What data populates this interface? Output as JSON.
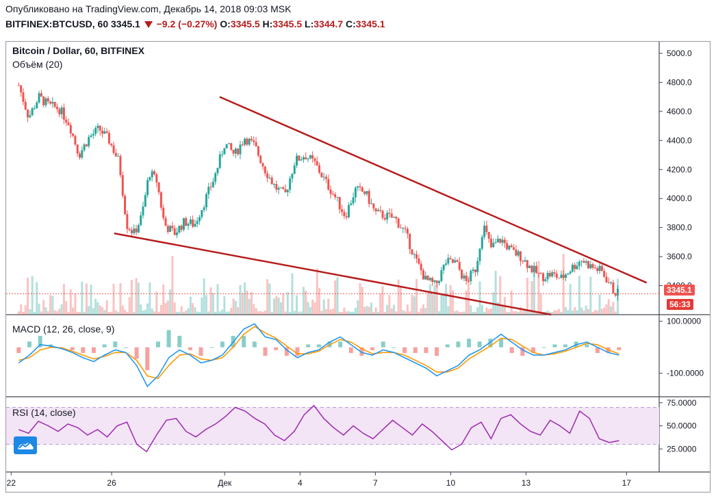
{
  "header": {
    "published": "Опубликовано на TradingView.com, Декабрь 14, 2018 09:03 MSK",
    "symbol": "BITFINEX:BTCUSD, 60",
    "last": "3345.1",
    "change": "−9.2 (−0.27%)",
    "o_label": "O:",
    "o_value": "3345.5",
    "h_label": "H:",
    "h_value": "3345.5",
    "l_label": "L:",
    "l_value": "3344.7",
    "c_label": "C:",
    "c_value": "3345.1"
  },
  "price_pane": {
    "title": "Bitcoin / Dollar, 60, BITFINEX",
    "volume_label": "Объём (20)",
    "last_price_tag": "3345.1",
    "countdown_tag": "56:33"
  },
  "macd_pane": {
    "title": "MACD (12, 26, close, 9)"
  },
  "rsi_pane": {
    "title": "RSI (14, close)"
  },
  "colors": {
    "up": "#26a69a",
    "down": "#ef5350",
    "trendline": "#b71c1c",
    "macd": "#2196f3",
    "signal": "#ff9800",
    "rsi": "#9c27b0",
    "rsi_band": "#f3e5f5"
  },
  "chart_data": [
    {
      "type": "candlestick",
      "title": "Bitcoin / Dollar, 60, BITFINEX",
      "x_ticks": [
        "22",
        "26",
        "Дек",
        "4",
        "7",
        "10",
        "13",
        "17"
      ],
      "y_ticks": [
        "5000.0",
        "4800.0",
        "4600.0",
        "4400.0",
        "4200.0",
        "4000.0",
        "3800.0",
        "3600.0",
        "3400.0"
      ],
      "ylim": [
        3200,
        5080
      ],
      "last_price": 3345.1,
      "close_path": [
        {
          "t": 0,
          "p": 4780
        },
        {
          "t": 0.4,
          "p": 4560
        },
        {
          "t": 0.8,
          "p": 4700
        },
        {
          "t": 1.2,
          "p": 4640
        },
        {
          "t": 1.6,
          "p": 4620
        },
        {
          "t": 2.0,
          "p": 4520
        },
        {
          "t": 2.4,
          "p": 4300
        },
        {
          "t": 2.8,
          "p": 4420
        },
        {
          "t": 3.2,
          "p": 4480
        },
        {
          "t": 3.6,
          "p": 4400
        },
        {
          "t": 4.0,
          "p": 4250
        },
        {
          "t": 4.3,
          "p": 3820
        },
        {
          "t": 4.6,
          "p": 3760
        },
        {
          "t": 4.9,
          "p": 3880
        },
        {
          "t": 5.2,
          "p": 4180
        },
        {
          "t": 5.5,
          "p": 4120
        },
        {
          "t": 5.8,
          "p": 3820
        },
        {
          "t": 6.2,
          "p": 3760
        },
        {
          "t": 6.6,
          "p": 3840
        },
        {
          "t": 7.0,
          "p": 3820
        },
        {
          "t": 7.4,
          "p": 3980
        },
        {
          "t": 7.8,
          "p": 4150
        },
        {
          "t": 8.2,
          "p": 4380
        },
        {
          "t": 8.6,
          "p": 4300
        },
        {
          "t": 9.0,
          "p": 4420
        },
        {
          "t": 9.4,
          "p": 4360
        },
        {
          "t": 9.8,
          "p": 4200
        },
        {
          "t": 10.2,
          "p": 4080
        },
        {
          "t": 10.6,
          "p": 4020
        },
        {
          "t": 11.0,
          "p": 4260
        },
        {
          "t": 11.4,
          "p": 4300
        },
        {
          "t": 11.8,
          "p": 4240
        },
        {
          "t": 12.2,
          "p": 4120
        },
        {
          "t": 12.6,
          "p": 4010
        },
        {
          "t": 13.0,
          "p": 3880
        },
        {
          "t": 13.4,
          "p": 4060
        },
        {
          "t": 13.8,
          "p": 4040
        },
        {
          "t": 14.2,
          "p": 3900
        },
        {
          "t": 14.6,
          "p": 3880
        },
        {
          "t": 15.0,
          "p": 3860
        },
        {
          "t": 15.4,
          "p": 3760
        },
        {
          "t": 15.8,
          "p": 3580
        },
        {
          "t": 16.2,
          "p": 3440
        },
        {
          "t": 16.6,
          "p": 3400
        },
        {
          "t": 17.0,
          "p": 3560
        },
        {
          "t": 17.4,
          "p": 3560
        },
        {
          "t": 17.8,
          "p": 3420
        },
        {
          "t": 18.2,
          "p": 3520
        },
        {
          "t": 18.5,
          "p": 3820
        },
        {
          "t": 18.8,
          "p": 3660
        },
        {
          "t": 19.2,
          "p": 3720
        },
        {
          "t": 19.6,
          "p": 3640
        },
        {
          "t": 20.0,
          "p": 3600
        },
        {
          "t": 20.4,
          "p": 3520
        },
        {
          "t": 20.8,
          "p": 3460
        },
        {
          "t": 21.2,
          "p": 3480
        },
        {
          "t": 21.6,
          "p": 3450
        },
        {
          "t": 22.0,
          "p": 3520
        },
        {
          "t": 22.4,
          "p": 3580
        },
        {
          "t": 22.8,
          "p": 3530
        },
        {
          "t": 23.2,
          "p": 3500
        },
        {
          "t": 23.5,
          "p": 3420
        },
        {
          "t": 23.7,
          "p": 3360
        },
        {
          "t": 23.9,
          "p": 3345
        }
      ],
      "trendlines": [
        {
          "from": {
            "t": 8.0,
            "p": 4700
          },
          "to": {
            "t": 25.0,
            "p": 3420
          }
        },
        {
          "from": {
            "t": 3.8,
            "p": 3760
          },
          "to": {
            "t": 21.2,
            "p": 3200
          }
        }
      ]
    },
    {
      "type": "line",
      "title": "MACD (12, 26, close, 9)",
      "y_ticks": [
        "100.0000",
        "-100.0000"
      ],
      "ylim": [
        -190,
        120
      ],
      "series": [
        {
          "name": "MACD",
          "values": [
            -60,
            -30,
            10,
            5,
            -5,
            -20,
            -40,
            -55,
            -30,
            -10,
            -20,
            -70,
            -150,
            -110,
            -40,
            -10,
            -30,
            -60,
            -50,
            -30,
            20,
            70,
            90,
            40,
            30,
            -10,
            -40,
            -20,
            -10,
            20,
            40,
            10,
            -20,
            -30,
            -10,
            -20,
            -40,
            -60,
            -80,
            -110,
            -90,
            -70,
            -30,
            -10,
            20,
            50,
            20,
            -10,
            -30,
            -30,
            -20,
            -10,
            10,
            20,
            0,
            -20,
            -30
          ]
        },
        {
          "name": "Signal",
          "values": [
            -50,
            -40,
            -10,
            0,
            -2,
            -15,
            -30,
            -45,
            -35,
            -20,
            -20,
            -50,
            -110,
            -120,
            -70,
            -30,
            -25,
            -45,
            -50,
            -40,
            0,
            50,
            80,
            55,
            35,
            5,
            -25,
            -25,
            -15,
            10,
            30,
            20,
            -5,
            -25,
            -20,
            -20,
            -30,
            -50,
            -70,
            -95,
            -95,
            -80,
            -45,
            -20,
            5,
            35,
            30,
            5,
            -20,
            -30,
            -25,
            -15,
            0,
            15,
            10,
            -10,
            -25
          ]
        }
      ]
    },
    {
      "type": "line",
      "title": "RSI (14, close)",
      "y_ticks": [
        "75.0000",
        "50.0000",
        "25.0000"
      ],
      "ylim": [
        0,
        80
      ],
      "band": [
        30,
        70
      ],
      "values": [
        46,
        42,
        55,
        50,
        44,
        52,
        48,
        40,
        46,
        38,
        50,
        54,
        30,
        22,
        40,
        56,
        58,
        44,
        38,
        46,
        52,
        60,
        70,
        66,
        58,
        52,
        40,
        34,
        44,
        62,
        72,
        58,
        48,
        40,
        50,
        42,
        36,
        46,
        56,
        48,
        40,
        52,
        44,
        34,
        24,
        30,
        48,
        54,
        36,
        58,
        62,
        52,
        44,
        40,
        56,
        50,
        42,
        66,
        58,
        36,
        32,
        34
      ]
    }
  ]
}
